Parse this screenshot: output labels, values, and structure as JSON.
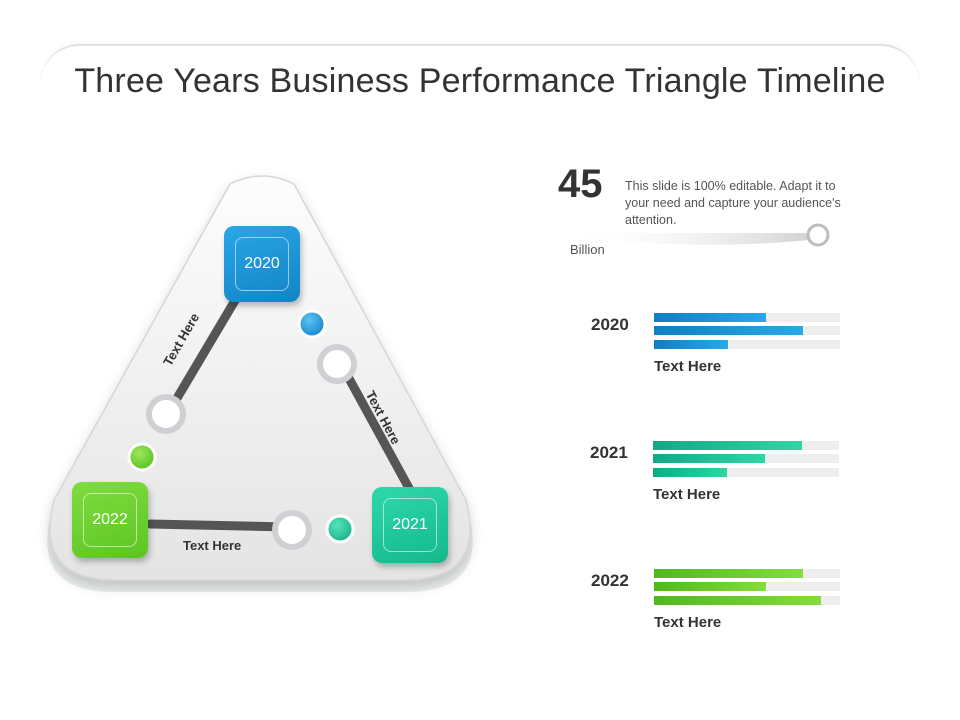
{
  "title": "Three Years Business Performance Triangle Timeline",
  "stat": {
    "value": "45",
    "unit": "Billion",
    "description": "This slide is 100% editable. Adapt it to your need and capture your audience's attention."
  },
  "colors": {
    "y2020": "#1a94d6",
    "y2021": "#1dc79a",
    "y2022": "#6cd02e"
  },
  "triangle": {
    "nodes": [
      {
        "year": "2020"
      },
      {
        "year": "2021"
      },
      {
        "year": "2022"
      }
    ],
    "edges": [
      {
        "label": "Text Here"
      },
      {
        "label": "Text Here"
      },
      {
        "label": "Text Here"
      }
    ]
  },
  "panels": [
    {
      "year": "2020",
      "caption": "Text Here",
      "bars": [
        0.6,
        0.8,
        0.4
      ]
    },
    {
      "year": "2021",
      "caption": "Text Here",
      "bars": [
        0.8,
        0.6,
        0.4
      ]
    },
    {
      "year": "2022",
      "caption": "Text Here",
      "bars": [
        0.8,
        0.6,
        0.9
      ]
    }
  ]
}
